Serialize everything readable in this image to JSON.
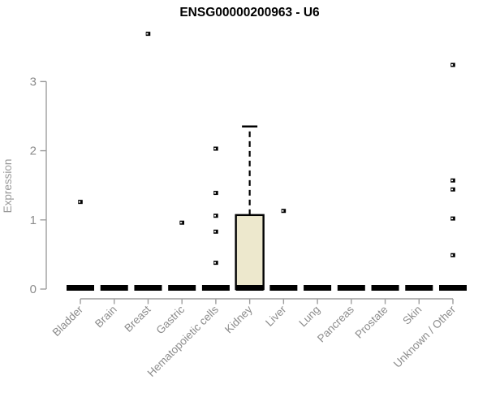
{
  "title": "ENSG00000200963 - U6",
  "colors": {
    "axis_line": "#9E9E9E",
    "tick_text": "#8C8C8C",
    "axis_label_text": "#999999",
    "title_text": "#000000",
    "box_fill": "#EDE8CD",
    "box_stroke": "#000000",
    "median_color": "#000000",
    "outlier_color": "#000000",
    "background": "#FFFFFF"
  },
  "chart_data": {
    "type": "boxplot",
    "title": "ENSG00000200963 - U6",
    "xlabel": "",
    "ylabel": "Expression",
    "yticks": [
      0,
      1,
      2,
      3
    ],
    "ylim": [
      0,
      3.75
    ],
    "grid": false,
    "legend": "none",
    "categories": [
      "Bladder",
      "Brain",
      "Breast",
      "Gastric",
      "Hematopoietic cells",
      "Kidney",
      "Liver",
      "Lung",
      "Pancreas",
      "Prostate",
      "Skin",
      "Unknown / Other"
    ],
    "boxes": [
      {
        "category": "Bladder",
        "median": 0,
        "q1": 0,
        "q3": 0,
        "whisker_low": 0,
        "whisker_high": 0,
        "outliers": [
          1.26
        ]
      },
      {
        "category": "Brain",
        "median": 0,
        "q1": 0,
        "q3": 0,
        "whisker_low": 0,
        "whisker_high": 0,
        "outliers": []
      },
      {
        "category": "Breast",
        "median": 0,
        "q1": 0,
        "q3": 0,
        "whisker_low": 0,
        "whisker_high": 0,
        "outliers": [
          3.69
        ]
      },
      {
        "category": "Gastric",
        "median": 0,
        "q1": 0,
        "q3": 0,
        "whisker_low": 0,
        "whisker_high": 0,
        "outliers": [
          0.96
        ]
      },
      {
        "category": "Hematopoietic cells",
        "median": 0,
        "q1": 0,
        "q3": 0,
        "whisker_low": 0,
        "whisker_high": 0,
        "outliers": [
          2.03,
          1.39,
          1.06,
          0.83,
          0.38
        ]
      },
      {
        "category": "Kidney",
        "median": 0,
        "q1": 0,
        "q3": 1.07,
        "whisker_low": 0,
        "whisker_high": 2.35,
        "outliers": []
      },
      {
        "category": "Liver",
        "median": 0,
        "q1": 0,
        "q3": 0,
        "whisker_low": 0,
        "whisker_high": 0,
        "outliers": [
          1.13
        ]
      },
      {
        "category": "Lung",
        "median": 0,
        "q1": 0,
        "q3": 0,
        "whisker_low": 0,
        "whisker_high": 0,
        "outliers": []
      },
      {
        "category": "Pancreas",
        "median": 0,
        "q1": 0,
        "q3": 0,
        "whisker_low": 0,
        "whisker_high": 0,
        "outliers": []
      },
      {
        "category": "Prostate",
        "median": 0,
        "q1": 0,
        "q3": 0,
        "whisker_low": 0,
        "whisker_high": 0,
        "outliers": []
      },
      {
        "category": "Skin",
        "median": 0,
        "q1": 0,
        "q3": 0,
        "whisker_low": 0,
        "whisker_high": 0,
        "outliers": []
      },
      {
        "category": "Unknown / Other",
        "median": 0,
        "q1": 0,
        "q3": 0,
        "whisker_low": 0,
        "whisker_high": 0,
        "outliers": [
          3.24,
          1.57,
          1.44,
          1.02,
          0.49
        ]
      }
    ]
  }
}
